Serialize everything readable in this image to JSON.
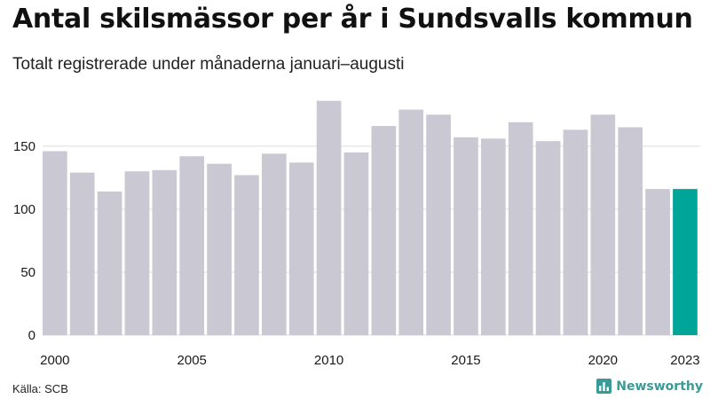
{
  "title": "Antal skilsmässor per år i Sundsvalls kommun",
  "subtitle": "Totalt registrerade under månaderna januari–augusti",
  "source": "Källa: SCB",
  "brand": {
    "name": "Newsworthy",
    "icon": "bar-chart-icon",
    "color": "#3a9a96"
  },
  "colors": {
    "bar": "#c9c8d3",
    "highlight": "#00a59a",
    "grid": "#dddddd"
  },
  "chart_data": {
    "type": "bar",
    "title": "Antal skilsmässor per år i Sundsvalls kommun",
    "subtitle": "Totalt registrerade under månaderna januari–augusti",
    "xlabel": "",
    "ylabel": "",
    "categories": [
      "2000",
      "2001",
      "2002",
      "2003",
      "2004",
      "2005",
      "2006",
      "2007",
      "2008",
      "2009",
      "2010",
      "2011",
      "2012",
      "2013",
      "2014",
      "2015",
      "2016",
      "2017",
      "2018",
      "2019",
      "2020",
      "2021",
      "2022",
      "2023"
    ],
    "values": [
      146,
      129,
      114,
      130,
      131,
      142,
      136,
      127,
      144,
      137,
      186,
      145,
      166,
      179,
      175,
      157,
      156,
      169,
      154,
      163,
      175,
      165,
      116,
      116
    ],
    "highlight_category": "2023",
    "ylim": [
      0,
      190
    ],
    "yticks": [
      0,
      50,
      100,
      150
    ],
    "xtick_labels": [
      "2000",
      "2005",
      "2010",
      "2015",
      "2020",
      "2023"
    ],
    "grid": true
  }
}
